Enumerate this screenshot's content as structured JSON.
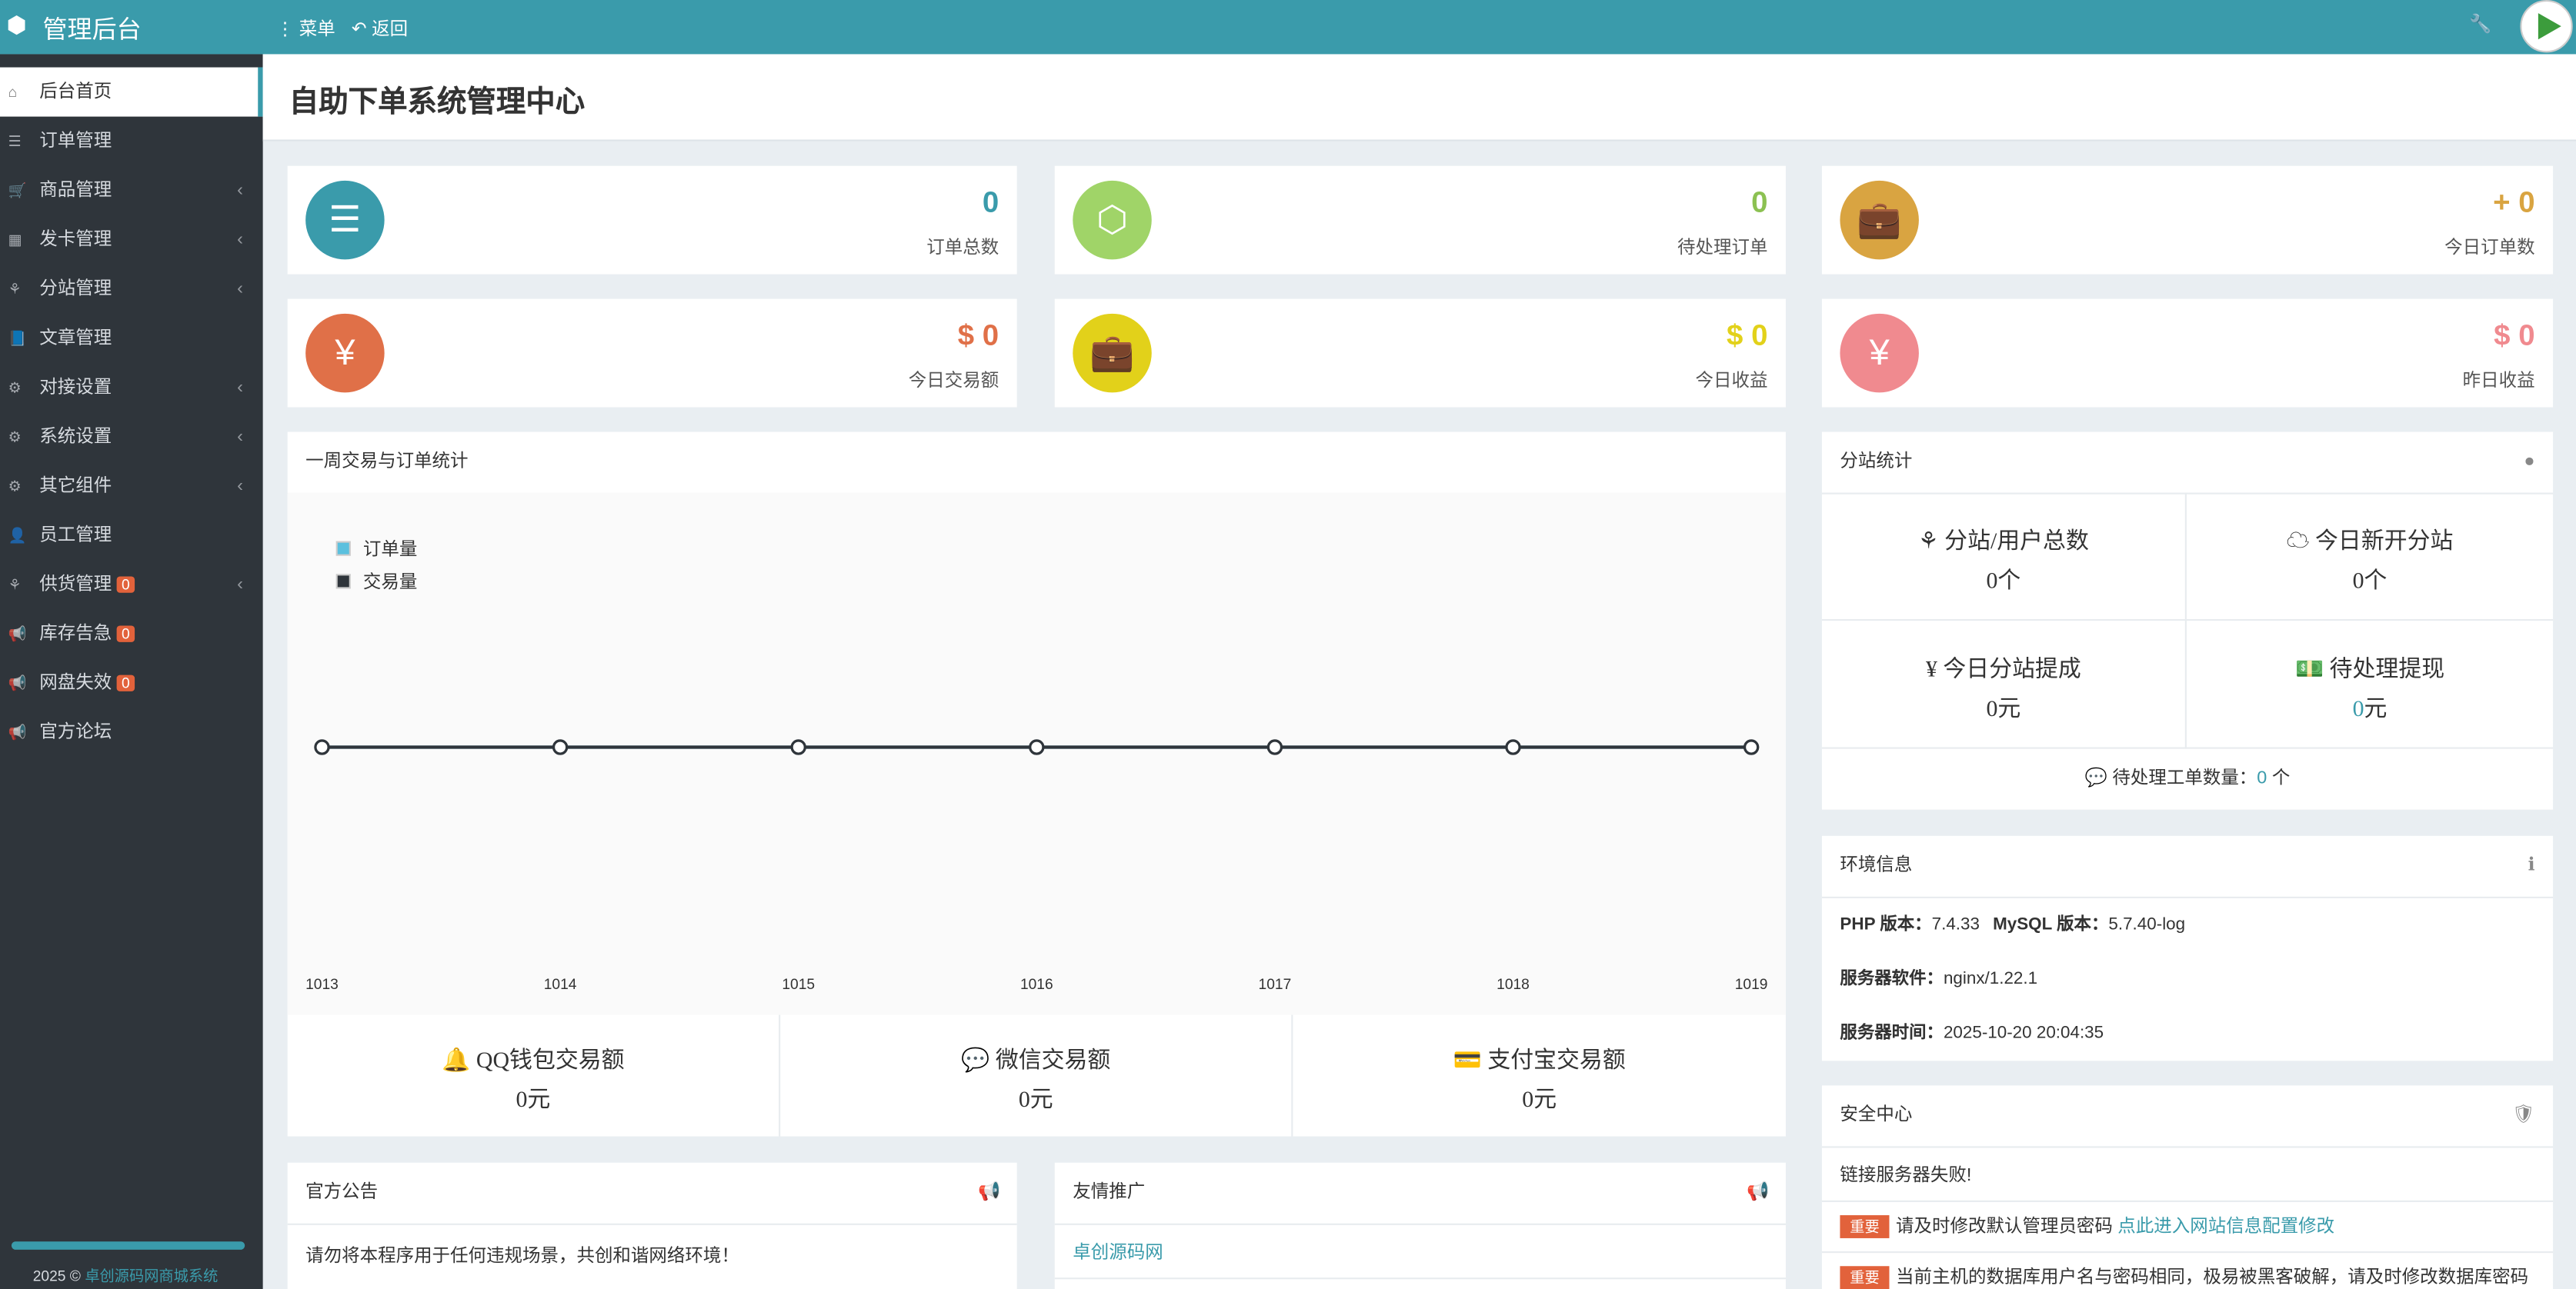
{
  "header": {
    "brand": "管理后台",
    "menu": "菜单",
    "back": "返回"
  },
  "sidebar": {
    "items": [
      {
        "label": "后台首页"
      },
      {
        "label": "订单管理"
      },
      {
        "label": "商品管理"
      },
      {
        "label": "发卡管理"
      },
      {
        "label": "分站管理"
      },
      {
        "label": "文章管理"
      },
      {
        "label": "对接设置"
      },
      {
        "label": "系统设置"
      },
      {
        "label": "其它组件"
      },
      {
        "label": "员工管理"
      },
      {
        "label": "供货管理",
        "badge": "0"
      },
      {
        "label": "库存告急",
        "badge": "0"
      },
      {
        "label": "网盘失效",
        "badge": "0"
      },
      {
        "label": "官方论坛"
      }
    ],
    "footer_year": "2025 ©",
    "footer_link": "卓创源码网商城系统"
  },
  "page_title": "自助下单系统管理中心",
  "stats": [
    {
      "value": "0",
      "label": "订单总数"
    },
    {
      "value": "0",
      "label": "待处理订单"
    },
    {
      "value": "+ 0",
      "label": "今日订单数"
    },
    {
      "value": "$ 0",
      "label": "今日交易额"
    },
    {
      "value": "$ 0",
      "label": "今日收益"
    },
    {
      "value": "$ 0",
      "label": "昨日收益"
    }
  ],
  "chart_data": {
    "type": "line",
    "title": "一周交易与订单统计",
    "categories": [
      "1013",
      "1014",
      "1015",
      "1016",
      "1017",
      "1018",
      "1019"
    ],
    "series": [
      {
        "name": "订单量",
        "color": "#5bc0de",
        "values": [
          0,
          0,
          0,
          0,
          0,
          0,
          0
        ]
      },
      {
        "name": "交易量",
        "color": "#2f353b",
        "values": [
          0,
          0,
          0,
          0,
          0,
          0,
          0
        ]
      }
    ],
    "ylim": [
      -1,
      1
    ],
    "legend": "top-left"
  },
  "payments": [
    {
      "label": "QQ钱包交易额",
      "value": "0元"
    },
    {
      "label": "微信交易额",
      "value": "0元"
    },
    {
      "label": "支付宝交易额",
      "value": "0元"
    }
  ],
  "notice": {
    "title": "官方公告",
    "text": "请勿将本程序用于任何违规场景，共创和谐网络环境！"
  },
  "friends": {
    "title": "友情推广",
    "link": "卓创源码网"
  },
  "substation": {
    "title": "分站统计",
    "cells": [
      {
        "label": "分站/用户总数",
        "value": "0",
        "unit": "个"
      },
      {
        "label": "今日新开分站",
        "value": "0",
        "unit": "个"
      },
      {
        "label": "今日分站提成",
        "value": "0",
        "unit": "元"
      },
      {
        "label": "待处理提现",
        "value": "0",
        "unit": "元"
      }
    ],
    "ticket_label": "待处理工单数量：",
    "ticket_value": "0",
    "ticket_unit": "个"
  },
  "env": {
    "title": "环境信息",
    "rows": [
      [
        {
          "k": "PHP 版本：",
          "v": "7.4.33"
        },
        {
          "k": "MySQL 版本：",
          "v": "5.7.40-log"
        }
      ],
      [
        {
          "k": "服务器软件：",
          "v": "nginx/1.22.1"
        }
      ],
      [
        {
          "k": "服务器时间：",
          "v": "2025-10-20 20:04:35"
        }
      ]
    ]
  },
  "security": {
    "title": "安全中心",
    "status": "链接服务器失败!",
    "items": [
      {
        "tag": "重要",
        "text": "请及时修改默认管理员密码",
        "link": "点此进入网站信息配置修改"
      },
      {
        "tag": "重要",
        "text": "当前主机的数据库用户名与密码相同，极易被黑客破解，请及时修改数据库密码"
      }
    ]
  }
}
